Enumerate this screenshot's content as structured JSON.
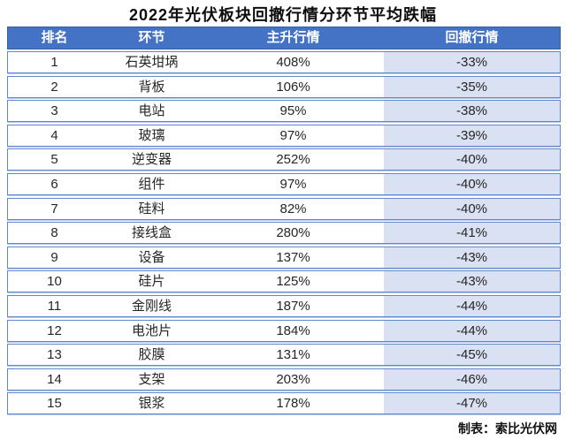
{
  "title": "2022年光伏板块回撤行情分环节平均跌幅",
  "table": {
    "headers": [
      "排名",
      "环节",
      "主升行情",
      "回撤行情"
    ],
    "rows": [
      {
        "rank": "1",
        "segment": "石英坩埚",
        "main_rise": "408%",
        "drawdown": "-33%"
      },
      {
        "rank": "2",
        "segment": "背板",
        "main_rise": "106%",
        "drawdown": "-35%"
      },
      {
        "rank": "3",
        "segment": "电站",
        "main_rise": "95%",
        "drawdown": "-38%"
      },
      {
        "rank": "4",
        "segment": "玻璃",
        "main_rise": "97%",
        "drawdown": "-39%"
      },
      {
        "rank": "5",
        "segment": "逆变器",
        "main_rise": "252%",
        "drawdown": "-40%"
      },
      {
        "rank": "6",
        "segment": "组件",
        "main_rise": "97%",
        "drawdown": "-40%"
      },
      {
        "rank": "7",
        "segment": "硅料",
        "main_rise": "82%",
        "drawdown": "-40%"
      },
      {
        "rank": "8",
        "segment": "接线盒",
        "main_rise": "280%",
        "drawdown": "-41%"
      },
      {
        "rank": "9",
        "segment": "设备",
        "main_rise": "137%",
        "drawdown": "-43%"
      },
      {
        "rank": "10",
        "segment": "硅片",
        "main_rise": "125%",
        "drawdown": "-43%"
      },
      {
        "rank": "11",
        "segment": "金刚线",
        "main_rise": "187%",
        "drawdown": "-44%"
      },
      {
        "rank": "12",
        "segment": "电池片",
        "main_rise": "184%",
        "drawdown": "-44%"
      },
      {
        "rank": "13",
        "segment": "胶膜",
        "main_rise": "131%",
        "drawdown": "-45%"
      },
      {
        "rank": "14",
        "segment": "支架",
        "main_rise": "203%",
        "drawdown": "-46%"
      },
      {
        "rank": "15",
        "segment": "银浆",
        "main_rise": "178%",
        "drawdown": "-47%"
      }
    ]
  },
  "footer": {
    "credit": "制表：索比光伏网"
  },
  "colors": {
    "header_bg": "#4472C4",
    "header_text": "#FFFFFF",
    "drawdown_column_bg": "#D9E1F2",
    "row_border": "#6088CC",
    "body_text": "#262626"
  },
  "chart_data": {
    "type": "table",
    "title": "2022年光伏板块回撤行情分环节平均跌幅",
    "columns": [
      "排名",
      "环节",
      "主升行情",
      "回撤行情"
    ],
    "rows": [
      [
        "1",
        "石英坩埚",
        "408%",
        "-33%"
      ],
      [
        "2",
        "背板",
        "106%",
        "-35%"
      ],
      [
        "3",
        "电站",
        "95%",
        "-38%"
      ],
      [
        "4",
        "玻璃",
        "97%",
        "-39%"
      ],
      [
        "5",
        "逆变器",
        "252%",
        "-40%"
      ],
      [
        "6",
        "组件",
        "97%",
        "-40%"
      ],
      [
        "7",
        "硅料",
        "82%",
        "-40%"
      ],
      [
        "8",
        "接线盒",
        "280%",
        "-41%"
      ],
      [
        "9",
        "设备",
        "137%",
        "-43%"
      ],
      [
        "10",
        "硅片",
        "125%",
        "-43%"
      ],
      [
        "11",
        "金刚线",
        "187%",
        "-44%"
      ],
      [
        "12",
        "电池片",
        "184%",
        "-44%"
      ],
      [
        "13",
        "胶膜",
        "131%",
        "-45%"
      ],
      [
        "14",
        "支架",
        "203%",
        "-46%"
      ],
      [
        "15",
        "银浆",
        "178%",
        "-47%"
      ]
    ],
    "series": [
      {
        "name": "主升行情(%)",
        "values": [
          408,
          106,
          95,
          97,
          252,
          97,
          82,
          280,
          137,
          125,
          187,
          184,
          131,
          203,
          178
        ]
      },
      {
        "name": "回撤行情(%)",
        "values": [
          -33,
          -35,
          -38,
          -39,
          -40,
          -40,
          -40,
          -41,
          -43,
          -43,
          -44,
          -44,
          -45,
          -46,
          -47
        ]
      }
    ],
    "categories": [
      "石英坩埚",
      "背板",
      "电站",
      "玻璃",
      "逆变器",
      "组件",
      "硅料",
      "接线盒",
      "设备",
      "硅片",
      "金刚线",
      "电池片",
      "胶膜",
      "支架",
      "银浆"
    ],
    "credit": "制表：索比光伏网"
  }
}
